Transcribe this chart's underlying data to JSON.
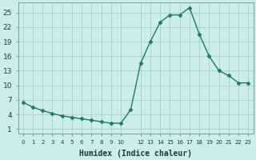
{
  "x": [
    0,
    1,
    2,
    3,
    4,
    5,
    6,
    7,
    8,
    9,
    10,
    11,
    12,
    13,
    14,
    15,
    16,
    17,
    18,
    19,
    20,
    21,
    22,
    23
  ],
  "y": [
    6.5,
    5.5,
    4.8,
    4.2,
    3.7,
    3.4,
    3.1,
    2.8,
    2.5,
    2.2,
    2.2,
    5.0,
    14.5,
    19.0,
    23.0,
    24.5,
    24.5,
    26.0,
    20.5,
    16.0,
    13.0,
    12.0,
    10.5,
    10.5
  ],
  "line_color": "#1a7a6e",
  "marker": "D",
  "marker_size": 2.5,
  "bg_color": "#cceee8",
  "grid_color": "#aad4cc",
  "xlabel": "Humidex (Indice chaleur)",
  "xlabel_fontsize": 7,
  "yticks": [
    1,
    4,
    7,
    10,
    13,
    16,
    19,
    22,
    25
  ],
  "xlim": [
    -0.5,
    23.5
  ],
  "ylim": [
    0,
    27
  ]
}
